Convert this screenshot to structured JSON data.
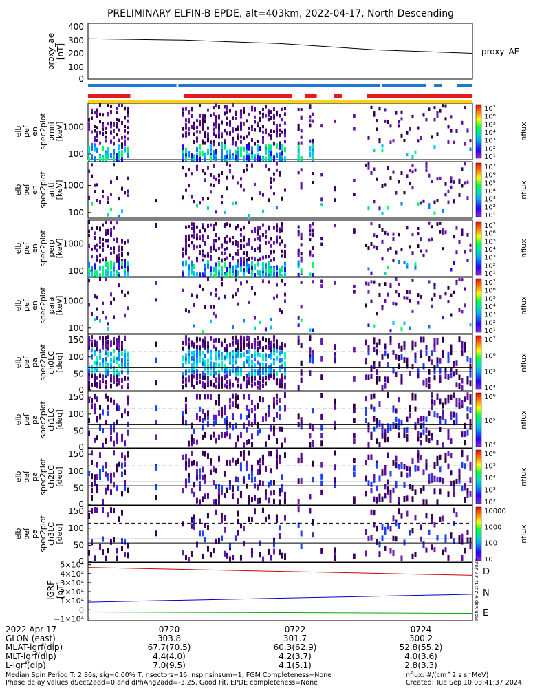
{
  "title": "PRELIMINARY ELFIN-B EPDE, alt=403km, 2022-04-17, North Descending",
  "colors": {
    "bar_blue": "#1f77d4",
    "bar_red": "#e41a1c",
    "bar_yellow": "#ffd400",
    "trace_red": "#d00000",
    "trace_blue": "#0000cc",
    "trace_green": "#00aa00"
  },
  "chart_data": [
    {
      "type": "line",
      "ylabel": [
        "proxy_ae",
        "[nT]"
      ],
      "series": [
        {
          "name": "proxy_AE",
          "x": [
            "07:18:30",
            "07:20:00",
            "07:22:00",
            "07:24:00",
            "07:25:00"
          ],
          "values": [
            290,
            280,
            255,
            210,
            185
          ]
        }
      ],
      "yticks": [
        "400",
        "300",
        "200",
        "100",
        "0"
      ],
      "ylim": [
        0,
        400
      ]
    },
    {
      "type": "heatmap",
      "ylabel": [
        "elb",
        "pef",
        "en",
        "spec2plot",
        "omni",
        "[keV]"
      ],
      "yticks": [
        "1000",
        "100"
      ],
      "colorbar": {
        "label": "nflux",
        "ticks": [
          "10⁷",
          "10⁶",
          "10⁵",
          "10⁴",
          "10³",
          "10²",
          "10¹"
        ]
      }
    },
    {
      "type": "heatmap",
      "ylabel": [
        "elb",
        "pef",
        "en",
        "spec2plot",
        "anti",
        "[keV]"
      ],
      "yticks": [
        "1000",
        "100"
      ],
      "colorbar": {
        "label": "nflux",
        "ticks": [
          "10⁷",
          "10⁶",
          "10⁵",
          "10⁴",
          "10³",
          "10²",
          "10¹"
        ]
      }
    },
    {
      "type": "heatmap",
      "ylabel": [
        "elb",
        "pef",
        "en",
        "spec2plot",
        "perp",
        "[keV]"
      ],
      "yticks": [
        "1000",
        "100"
      ],
      "colorbar": {
        "label": "nflux",
        "ticks": [
          "10⁷",
          "10⁶",
          "10⁵",
          "10⁴",
          "10³",
          "10²",
          "10¹"
        ]
      }
    },
    {
      "type": "heatmap",
      "ylabel": [
        "elb",
        "pef",
        "en",
        "spec2plot",
        "para",
        "[keV]"
      ],
      "yticks": [
        "1000",
        "100"
      ],
      "colorbar": {
        "label": "nflux",
        "ticks": [
          "10⁷",
          "10⁶",
          "10⁵",
          "10⁴",
          "10³",
          "10²",
          "10¹"
        ]
      }
    },
    {
      "type": "heatmap",
      "ylabel": [
        "elb",
        "pef",
        "pa",
        "spec2plot",
        "ch0LC",
        "[deg]"
      ],
      "yticks": [
        "150",
        "100",
        "50",
        "0"
      ],
      "ylim": [
        0,
        180
      ],
      "colorbar": {
        "label": "nflux",
        "ticks": [
          "10⁷",
          "10⁶",
          "10⁵",
          "10⁴"
        ]
      }
    },
    {
      "type": "heatmap",
      "ylabel": [
        "elb",
        "pef",
        "pa",
        "spec2plot",
        "ch1LC",
        "[deg]"
      ],
      "yticks": [
        "150",
        "100",
        "50",
        "0"
      ],
      "ylim": [
        0,
        180
      ],
      "colorbar": {
        "label": "nflux",
        "ticks": [
          "10⁶",
          "10⁵",
          "10⁴"
        ]
      }
    },
    {
      "type": "heatmap",
      "ylabel": [
        "elb",
        "pef",
        "pa",
        "spec2plot",
        "ch2LC",
        "[deg]"
      ],
      "yticks": [
        "150",
        "100",
        "50",
        "0"
      ],
      "ylim": [
        0,
        180
      ],
      "colorbar": {
        "label": "nflux",
        "ticks": [
          "10⁶",
          "10⁵",
          "10⁴",
          "10³",
          "10²"
        ]
      }
    },
    {
      "type": "heatmap",
      "ylabel": [
        "elb",
        "pef",
        "pa",
        "spec2plot",
        "ch3LC",
        "[deg]"
      ],
      "yticks": [
        "150",
        "100",
        "50",
        "0"
      ],
      "ylim": [
        0,
        180
      ],
      "colorbar": {
        "label": "nflux",
        "ticks": [
          "10000",
          "1000",
          "100",
          "10"
        ]
      }
    },
    {
      "type": "line",
      "ylabel": [
        "IGRF",
        "[nT]"
      ],
      "yticks": [
        "5×10⁴",
        "4×10⁴",
        "3×10⁴",
        "2×10⁴",
        "1×10⁴",
        "0",
        "−1×10⁴"
      ],
      "ylim": [
        -12000,
        52000
      ],
      "series": [
        {
          "name": "D",
          "x": [
            "07:18:30",
            "07:25:00"
          ],
          "values": [
            47000,
            38000
          ]
        },
        {
          "name": "N",
          "x": [
            "07:18:30",
            "07:25:00"
          ],
          "values": [
            8500,
            17000
          ]
        },
        {
          "name": "E",
          "x": [
            "07:18:30",
            "07:25:00"
          ],
          "values": [
            -2500,
            -4000
          ]
        }
      ],
      "side_text": "Mon Sep 9 20:41:37 2024"
    }
  ],
  "footer": {
    "left_labels": [
      "2022 Apr 17",
      "GLON (east)",
      "MLAT-igrf(dip)",
      "MLT-igrf(dip)",
      "L-igrf(dip)"
    ],
    "columns": [
      {
        "values": [
          "0720",
          "303.8",
          "67.7(70.5)",
          "4.4(4.0)",
          "7.0(9.5)"
        ]
      },
      {
        "values": [
          "0722",
          "301.7",
          "60.3(62.9)",
          "4.2(3.7)",
          "4.1(5.1)"
        ]
      },
      {
        "values": [
          "0724",
          "300.2",
          "52.8(55.2)",
          "4.0(3.6)",
          "2.8(3.3)"
        ]
      }
    ],
    "note_lines": [
      "Median Spin Period T: 2.86s, sig=0.00% T, nsectors=16, nspinsinsum=1, FGM Completeness=None",
      "Phase delay values dSect2add=0 and dPhAng2add=-3.25, Good Fit, EPDE completeness=None"
    ],
    "right_lines": [
      "nflux: #/(cm^2 s sr MeV)",
      "Created: Tue Sep 10 03:41:37 2024"
    ]
  }
}
